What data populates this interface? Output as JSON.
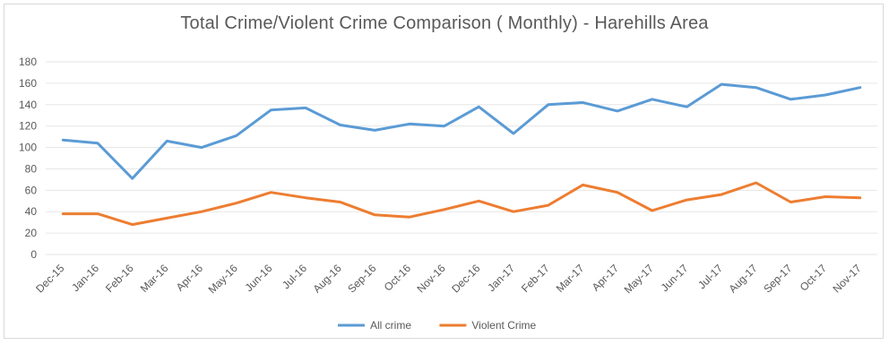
{
  "chart_data": {
    "type": "line",
    "title": "Total Crime/Violent Crime Comparison ( Monthly) - Harehills Area",
    "xlabel": "",
    "ylabel": "",
    "ylim": [
      0,
      180
    ],
    "ytick_step": 20,
    "grid": "horizontal",
    "legend_position": "bottom",
    "categories": [
      "Dec-15",
      "Jan-16",
      "Feb-16",
      "Mar-16",
      "Apr-16",
      "May-16",
      "Jun-16",
      "Jul-16",
      "Aug-16",
      "Sep-16",
      "Oct-16",
      "Nov-16",
      "Dec-16",
      "Jan-17",
      "Feb-17",
      "Mar-17",
      "Apr-17",
      "May-17",
      "Jun-17",
      "Jul-17",
      "Aug-17",
      "Sep-17",
      "Oct-17",
      "Nov-17"
    ],
    "series": [
      {
        "name": "All crime",
        "color": "#5b9bd5",
        "values": [
          107,
          104,
          71,
          106,
          100,
          111,
          135,
          137,
          121,
          116,
          122,
          120,
          138,
          113,
          140,
          142,
          134,
          145,
          138,
          159,
          156,
          145,
          149,
          156
        ]
      },
      {
        "name": "Violent Crime",
        "color": "#ed7d31",
        "values": [
          38,
          38,
          28,
          34,
          40,
          48,
          58,
          53,
          49,
          37,
          35,
          42,
          50,
          40,
          46,
          65,
          58,
          41,
          51,
          56,
          67,
          49,
          54,
          53
        ]
      }
    ]
  }
}
